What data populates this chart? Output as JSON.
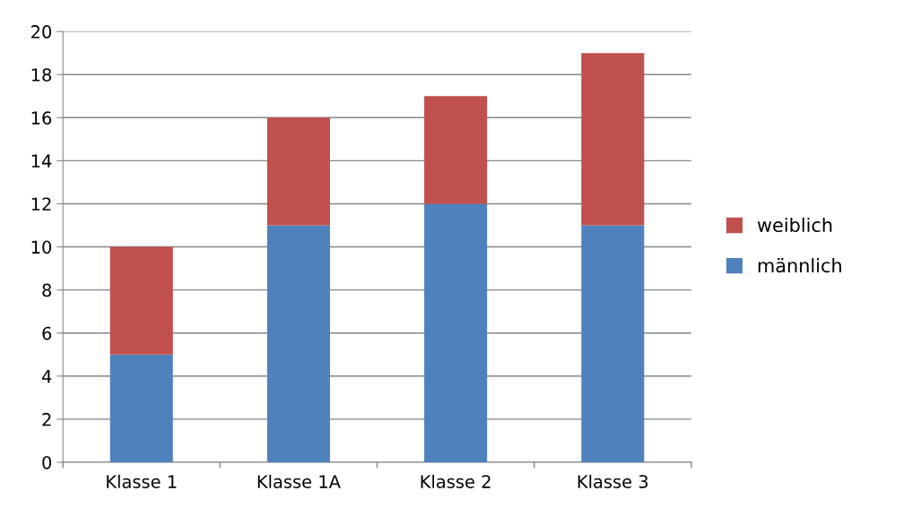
{
  "chart_data": {
    "type": "bar",
    "stacked": true,
    "categories": [
      "Klasse 1",
      "Klasse 1A",
      "Klasse 2",
      "Klasse 3"
    ],
    "series": [
      {
        "name": "männlich",
        "color": "#4f81bd",
        "values": [
          5,
          11,
          12,
          11
        ]
      },
      {
        "name": "weiblich",
        "color": "#c0504d",
        "values": [
          5,
          5,
          5,
          8
        ]
      }
    ],
    "ylim": [
      0,
      20
    ],
    "yticks": [
      0,
      2,
      4,
      6,
      8,
      10,
      12,
      14,
      16,
      18,
      20
    ],
    "grid": "y",
    "legend": "right"
  }
}
